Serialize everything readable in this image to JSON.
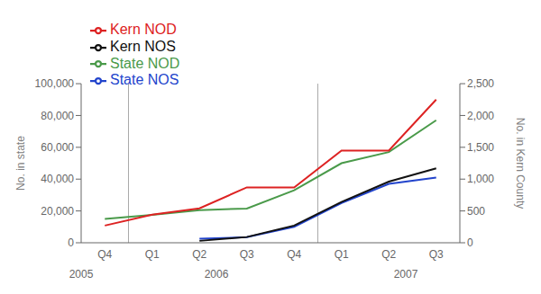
{
  "chart_data": {
    "type": "line",
    "categories": [
      "Q4",
      "Q1",
      "Q2",
      "Q3",
      "Q4",
      "Q1",
      "Q2",
      "Q3"
    ],
    "series": [
      {
        "name": "State NOD",
        "color": "#4a9a4a",
        "values": [
          15000,
          17500,
          20500,
          21500,
          33000,
          50000,
          57000,
          77000
        ]
      },
      {
        "name": "State NOS",
        "color": "#2244cc",
        "values": [
          null,
          null,
          2500,
          3500,
          10000,
          25000,
          37000,
          41000
        ]
      },
      {
        "name": "Kern NOD",
        "color": "#dd2222",
        "values": [
          270,
          440,
          540,
          870,
          870,
          1450,
          1450,
          2250
        ],
        "axis": "y2"
      },
      {
        "name": "Kern NOS",
        "color": "#111111",
        "values": [
          null,
          null,
          30,
          90,
          270,
          640,
          960,
          1170
        ],
        "axis": "y2"
      }
    ],
    "ylim": [
      0,
      100000
    ],
    "yticks": [
      0,
      {
        "value": 20000,
        "label": "20,000"
      },
      {
        "value": 40000,
        "label": "40,000"
      },
      {
        "value": 60000,
        "label": "60,000"
      },
      {
        "value": 80000,
        "label": "80,000"
      },
      {
        "value": 100000,
        "label": "100,000"
      }
    ],
    "y2lim": [
      0,
      2500
    ],
    "y2ticks": [
      0,
      500,
      {
        "value": 1000,
        "label": "1,000"
      },
      {
        "value": 1500,
        "label": "1,500"
      },
      {
        "value": 2000,
        "label": "2,000"
      },
      {
        "value": 2500,
        "label": "2,500"
      }
    ],
    "ylabel": "No. in state",
    "y2label": "No. in Kern County",
    "annotations": [
      {
        "text": "2005",
        "x": 0
      },
      {
        "text": "2006",
        "x": 2.5
      },
      {
        "text": "2007",
        "x": 6.0
      }
    ],
    "vlines": [
      0.5,
      4.5
    ],
    "legend": "upper left",
    "grid": false
  }
}
